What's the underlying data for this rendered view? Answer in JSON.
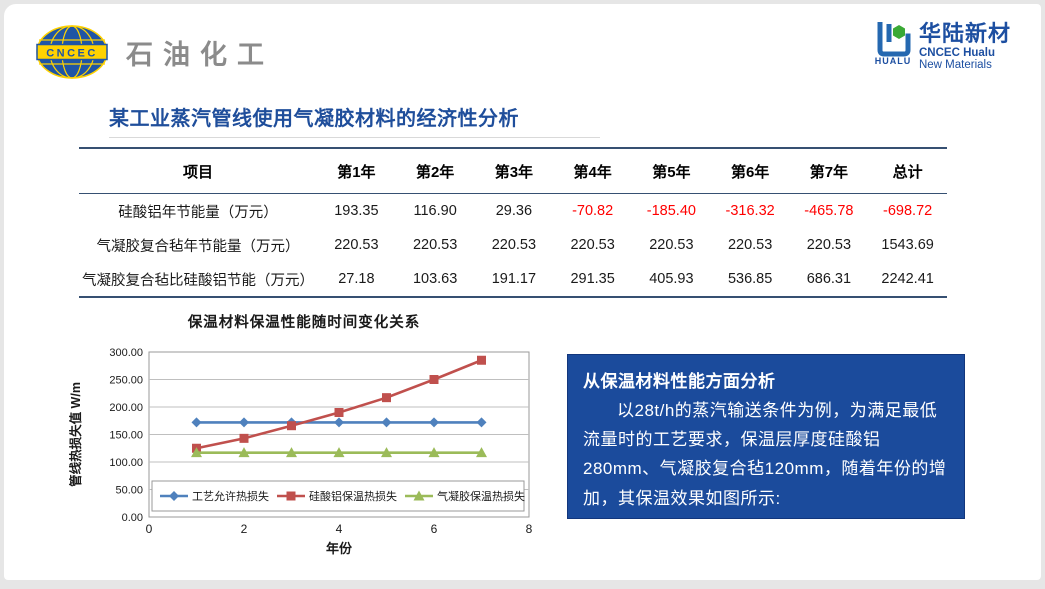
{
  "logos": {
    "left": {
      "badge_text": "CNCEC",
      "brand_text": "石油化工",
      "globe_color": "#1f55a5",
      "band_color": "#ffd200"
    },
    "right": {
      "mark_label": "HUALU",
      "cn": "华陆新材",
      "en_line1": "CNCEC Hualu",
      "en_line2": "New Materials",
      "brand_color": "#1d4fa1",
      "dot_color": "#3aa935"
    }
  },
  "title": "某工业蒸汽管线使用气凝胶材料的经济性分析",
  "title_color": "#1f4e9b",
  "table": {
    "headers": [
      "项目",
      "第1年",
      "第2年",
      "第3年",
      "第4年",
      "第5年",
      "第6年",
      "第7年",
      "总计"
    ],
    "rows": [
      {
        "label": "硅酸铝年节能量（万元）",
        "values": [
          "193.35",
          "116.90",
          "29.36",
          "-70.82",
          "-185.40",
          "-316.32",
          "-465.78",
          "-698.72"
        ]
      },
      {
        "label": "气凝胶复合毡年节能量（万元）",
        "values": [
          "220.53",
          "220.53",
          "220.53",
          "220.53",
          "220.53",
          "220.53",
          "220.53",
          "1543.69"
        ]
      },
      {
        "label": "气凝胶复合毡比硅酸铝节能（万元）",
        "values": [
          "27.18",
          "103.63",
          "191.17",
          "291.35",
          "405.93",
          "536.85",
          "686.31",
          "2242.41"
        ]
      }
    ],
    "negative_color": "#ff0000",
    "border_color": "#365072"
  },
  "chart_data": {
    "type": "line",
    "title": "保温材料保温性能随时间变化关系",
    "xlabel": "年份",
    "ylabel": "管线热损失值 W/m",
    "xlim": [
      0,
      8
    ],
    "ylim": [
      0,
      300
    ],
    "x_ticks": [
      0,
      2,
      4,
      6,
      8
    ],
    "y_ticks": [
      "0.00",
      "50.00",
      "100.00",
      "150.00",
      "200.00",
      "250.00",
      "300.00"
    ],
    "grid": true,
    "legend_position": "bottom-inside",
    "x": [
      1,
      2,
      3,
      4,
      5,
      6,
      7
    ],
    "series": [
      {
        "name": "工艺允许热损失",
        "color": "#4f81bd",
        "marker": "diamond",
        "values": [
          172,
          172,
          172,
          172,
          172,
          172,
          172
        ]
      },
      {
        "name": "硅酸铝保温热损失",
        "color": "#c0504d",
        "marker": "square",
        "values": [
          125,
          143,
          166,
          190,
          217,
          250,
          285
        ]
      },
      {
        "name": "气凝胶保温热损失",
        "color": "#9bbb59",
        "marker": "triangle",
        "values": [
          117,
          117,
          117,
          117,
          117,
          117,
          117
        ]
      }
    ]
  },
  "analysis_box": {
    "heading": "从保温材料性能方面分析",
    "body": "以28t/h的蒸汽输送条件为例，为满足最低流量时的工艺要求，保温层厚度硅酸铝280mm、气凝胶复合毡120mm，随着年份的增加，其保温效果如图所示:",
    "bg_color": "#1b4b9c",
    "text_color": "#ffffff"
  }
}
